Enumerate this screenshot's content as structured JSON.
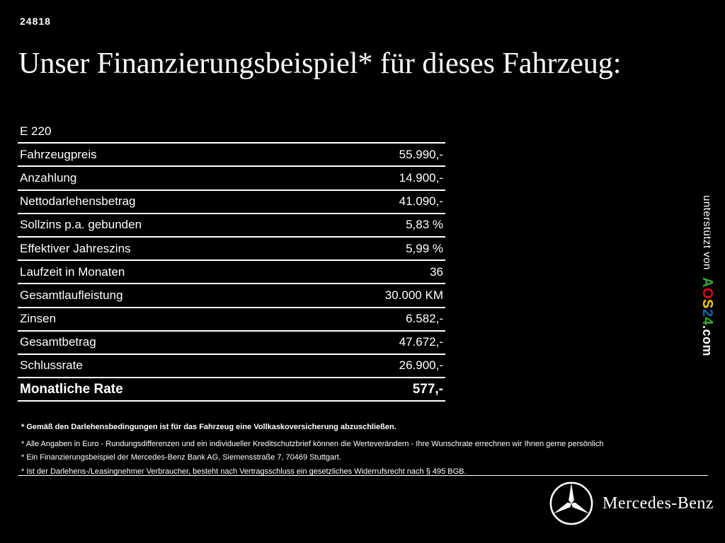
{
  "page": {
    "ref_number": "24818",
    "title": "Unser Finanzierungsbeispiel* für dieses Fahrzeug:"
  },
  "finance_table": {
    "model": "E 220",
    "rows": [
      {
        "label": "Fahrzeugpreis",
        "value": "55.990,-"
      },
      {
        "label": "Anzahlung",
        "value": "14.900,-"
      },
      {
        "label": "Nettodarlehensbetrag",
        "value": "41.090,-"
      },
      {
        "label": "Sollzins p.a. gebunden",
        "value": "5,83 %"
      },
      {
        "label": "Effektiver Jahreszins",
        "value": "5,99 %"
      },
      {
        "label": "Laufzeit in Monaten",
        "value": "36"
      },
      {
        "label": "Gesamtlaufleistung",
        "value": "30.000 KM"
      },
      {
        "label": "Zinsen",
        "value": "6.582,-"
      },
      {
        "label": "Gesamtbetrag",
        "value": "47.672,-"
      },
      {
        "label": "Schlussrate",
        "value": "26.900,-"
      }
    ],
    "total_row": {
      "label": "Monatliche Rate",
      "value": "577,-"
    }
  },
  "sidebar": {
    "supported_by": "unterstützt von",
    "logo_letters": [
      {
        "char": "A",
        "color": "#3aaa35"
      },
      {
        "char": "O",
        "color": "#e2001a"
      },
      {
        "char": "S",
        "color": "#ffcc00"
      },
      {
        "char": "2",
        "color": "#0069b4"
      },
      {
        "char": "4",
        "color": "#3aaa35"
      }
    ],
    "domain_suffix": ".com"
  },
  "footnotes": [
    "* Gemäß den Darlehensbedingungen ist für das Fahrzeug eine Vollkaskoversicherung abzuschließen.",
    "* Alle Angaben in Euro - Rundungsdifferenzen und ein individueller Kreditschutzbrief können die Werteverändern - Ihre Wunschrate errechnen wir Ihnen gerne persönlich",
    "* Ein Finanzierungsbeispiel der Mercedes-Benz Bank AG, Siemensstraße 7, 70469 Stuttgart.",
    "* Ist der Darlehens-/Leasingnehmer Verbraucher, besteht nach Vertragsschluss ein gesetzliches Widerrufsrecht nach § 495 BGB."
  ],
  "brand": {
    "name": "Mercedes-Benz",
    "accent_white": "#ffffff",
    "background": "#000000"
  }
}
